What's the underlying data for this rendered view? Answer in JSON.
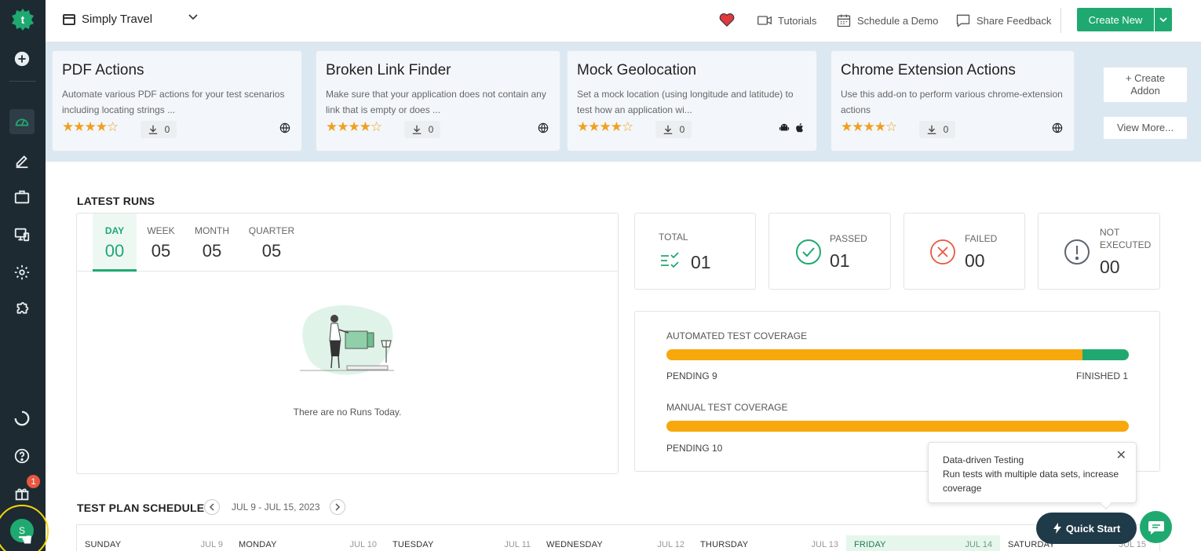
{
  "app": {
    "project_name": "Simply Travel",
    "notification_count": "1",
    "avatar_initial": "S"
  },
  "topbar": {
    "tutorials": "Tutorials",
    "schedule_demo": "Schedule a Demo",
    "share_feedback": "Share Feedback",
    "create_new": "Create New"
  },
  "addons": [
    {
      "title": "PDF Actions",
      "description": "Automate various PDF actions for your test scenarios including locating strings ...",
      "rating": 4,
      "downloads": "0",
      "platforms": [
        "globe-icon"
      ]
    },
    {
      "title": "Broken Link Finder",
      "description": "Make sure that your application does not contain any link that is empty or does ...",
      "rating": 4,
      "downloads": "0",
      "platforms": [
        "globe-icon"
      ]
    },
    {
      "title": "Mock Geolocation",
      "description": "Set a mock location (using longitude and latitude) to test how an application wi...",
      "rating": 4,
      "downloads": "0",
      "platforms": [
        "android-icon",
        "apple-icon"
      ]
    },
    {
      "title": "Chrome Extension Actions",
      "description": "Use this add-on to perform various chrome-extension actions",
      "rating": 4,
      "downloads": "0",
      "platforms": [
        "globe-icon"
      ]
    }
  ],
  "addon_actions": {
    "create_addon": "+ Create Addon",
    "view_more": "View More..."
  },
  "latest_runs": {
    "title": "LATEST RUNS",
    "tabs": [
      {
        "label": "DAY",
        "value": "00",
        "active": true
      },
      {
        "label": "WEEK",
        "value": "05",
        "active": false
      },
      {
        "label": "MONTH",
        "value": "05",
        "active": false
      },
      {
        "label": "QUARTER",
        "value": "05",
        "active": false
      }
    ],
    "empty_text": "There are no Runs Today."
  },
  "stats": {
    "total": {
      "label": "TOTAL",
      "value": "01"
    },
    "passed": {
      "label": "PASSED",
      "value": "01"
    },
    "failed": {
      "label": "FAILED",
      "value": "00"
    },
    "not_executed": {
      "label": "NOT EXECUTED",
      "value": "00"
    }
  },
  "coverage": {
    "automated": {
      "label": "AUTOMATED TEST COVERAGE",
      "pending": "PENDING 9",
      "finished": "FINISHED 1",
      "finished_fraction": 0.1
    },
    "manual": {
      "label": "MANUAL TEST COVERAGE",
      "pending": "PENDING 10",
      "finished_fraction": 0
    }
  },
  "tooltip": {
    "title": "Data-driven Testing",
    "body": "Run tests with multiple data sets, increase coverage"
  },
  "schedule": {
    "title": "TEST PLAN SCHEDULE",
    "range": "JUL 9 - JUL 15, 2023",
    "days": [
      {
        "name": "SUNDAY",
        "date": "JUL 9",
        "today": false
      },
      {
        "name": "MONDAY",
        "date": "JUL 10",
        "today": false
      },
      {
        "name": "TUESDAY",
        "date": "JUL 11",
        "today": false
      },
      {
        "name": "WEDNESDAY",
        "date": "JUL 12",
        "today": false
      },
      {
        "name": "THURSDAY",
        "date": "JUL 13",
        "today": false
      },
      {
        "name": "FRIDAY",
        "date": "JUL 14",
        "today": true
      },
      {
        "name": "SATURDAY",
        "date": "JUL 15",
        "today": false
      }
    ]
  },
  "quick_start": "Quick Start",
  "colors": {
    "brand_green": "#1fa971",
    "pending_orange": "#f6a80c",
    "failed_red": "#e9573f",
    "sidebar_bg": "#1e2a32"
  }
}
